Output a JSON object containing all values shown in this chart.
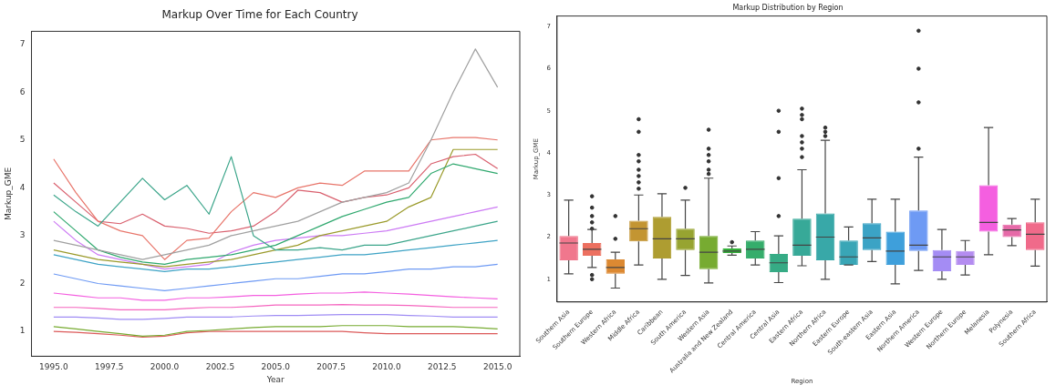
{
  "chart_data": [
    {
      "type": "line",
      "title": "Markup Over Time for Each Country",
      "xlabel": "Year",
      "ylabel": "Markup_GME",
      "xlim": [
        1994,
        2016
      ],
      "ylim": [
        0.48,
        7.27
      ],
      "xticks": [
        {
          "value": 1995,
          "label": "1995.0"
        },
        {
          "value": 1997.5,
          "label": "1997.5"
        },
        {
          "value": 2000,
          "label": "2000.0"
        },
        {
          "value": 2002.5,
          "label": "2002.5"
        },
        {
          "value": 2005,
          "label": "2005.0"
        },
        {
          "value": 2007.5,
          "label": "2007.5"
        },
        {
          "value": 2010,
          "label": "2010.0"
        },
        {
          "value": 2012.5,
          "label": "2012.5"
        },
        {
          "value": 2015,
          "label": "2015.0"
        }
      ],
      "yticks": [
        1,
        2,
        3,
        4,
        5,
        6,
        7
      ],
      "grid": false,
      "legend": false,
      "x": [
        1995,
        1996,
        1997,
        1998,
        1999,
        2000,
        2001,
        2002,
        2003,
        2004,
        2005,
        2006,
        2007,
        2008,
        2009,
        2010,
        2011,
        2012,
        2013,
        2014,
        2015
      ],
      "series": [
        {
          "color": "#a0a0a0",
          "values": [
            2.9,
            2.8,
            2.7,
            2.6,
            2.5,
            2.6,
            2.7,
            2.8,
            3.0,
            3.1,
            3.2,
            3.3,
            3.5,
            3.7,
            3.8,
            3.9,
            4.1,
            5.0,
            6.0,
            6.9,
            6.1
          ]
        },
        {
          "color": "#3ba58a",
          "values": [
            3.85,
            3.5,
            3.2,
            3.7,
            4.2,
            3.75,
            4.05,
            3.45,
            4.65,
            3.0,
            2.7,
            2.7,
            2.75,
            2.7,
            2.8,
            2.8,
            2.9,
            3.0,
            3.1,
            3.2,
            3.3
          ]
        },
        {
          "color": "#e8756a",
          "values": [
            4.6,
            3.9,
            3.3,
            3.1,
            3.0,
            2.5,
            2.9,
            2.95,
            3.5,
            3.9,
            3.8,
            4.0,
            4.1,
            4.05,
            4.35,
            4.35,
            4.35,
            5.0,
            5.05,
            5.05,
            5.0
          ]
        },
        {
          "color": "#d9606e",
          "values": [
            4.1,
            3.7,
            3.3,
            3.25,
            3.45,
            3.2,
            3.15,
            3.05,
            3.1,
            3.2,
            3.5,
            3.95,
            3.9,
            3.7,
            3.8,
            3.85,
            4.0,
            4.5,
            4.65,
            4.7,
            4.4
          ]
        },
        {
          "color": "#2fa86e",
          "values": [
            3.5,
            3.1,
            2.7,
            2.55,
            2.45,
            2.4,
            2.5,
            2.55,
            2.6,
            2.7,
            2.8,
            3.0,
            3.2,
            3.4,
            3.55,
            3.7,
            3.8,
            4.3,
            4.5,
            4.4,
            4.3
          ]
        },
        {
          "color": "#9a9a2a",
          "values": [
            2.7,
            2.6,
            2.5,
            2.45,
            2.4,
            2.35,
            2.4,
            2.45,
            2.5,
            2.6,
            2.7,
            2.8,
            3.0,
            3.1,
            3.2,
            3.3,
            3.6,
            3.8,
            4.8,
            4.8,
            4.8
          ]
        },
        {
          "color": "#cc7af4",
          "values": [
            3.3,
            2.9,
            2.6,
            2.5,
            2.4,
            2.3,
            2.35,
            2.4,
            2.65,
            2.8,
            2.9,
            2.95,
            3.0,
            3.0,
            3.05,
            3.1,
            3.2,
            3.3,
            3.4,
            3.5,
            3.6
          ]
        },
        {
          "color": "#3ea3c5",
          "values": [
            2.6,
            2.5,
            2.4,
            2.35,
            2.3,
            2.25,
            2.3,
            2.3,
            2.35,
            2.4,
            2.45,
            2.5,
            2.55,
            2.6,
            2.6,
            2.65,
            2.7,
            2.75,
            2.8,
            2.85,
            2.9
          ]
        },
        {
          "color": "#6e9af4",
          "values": [
            2.2,
            2.1,
            2.0,
            1.95,
            1.9,
            1.85,
            1.9,
            1.95,
            2.0,
            2.05,
            2.1,
            2.1,
            2.15,
            2.2,
            2.2,
            2.25,
            2.3,
            2.3,
            2.35,
            2.35,
            2.4
          ]
        },
        {
          "color": "#f45fe0",
          "values": [
            1.8,
            1.75,
            1.7,
            1.7,
            1.65,
            1.65,
            1.7,
            1.7,
            1.72,
            1.75,
            1.75,
            1.78,
            1.8,
            1.8,
            1.82,
            1.8,
            1.78,
            1.75,
            1.72,
            1.7,
            1.68
          ]
        },
        {
          "color": "#f565bf",
          "values": [
            1.5,
            1.5,
            1.48,
            1.45,
            1.45,
            1.45,
            1.48,
            1.5,
            1.5,
            1.52,
            1.55,
            1.55,
            1.55,
            1.56,
            1.55,
            1.55,
            1.54,
            1.52,
            1.5,
            1.5,
            1.5
          ]
        },
        {
          "color": "#9f8cf4",
          "values": [
            1.3,
            1.3,
            1.28,
            1.25,
            1.25,
            1.27,
            1.3,
            1.3,
            1.3,
            1.32,
            1.33,
            1.33,
            1.34,
            1.35,
            1.35,
            1.35,
            1.33,
            1.32,
            1.3,
            1.3,
            1.3
          ]
        },
        {
          "color": "#77ab31",
          "values": [
            1.1,
            1.05,
            1.0,
            0.95,
            0.9,
            0.92,
            1.0,
            1.02,
            1.05,
            1.08,
            1.1,
            1.1,
            1.1,
            1.12,
            1.12,
            1.12,
            1.1,
            1.1,
            1.1,
            1.08,
            1.05
          ]
        },
        {
          "color": "#dc5a5a",
          "values": [
            1.0,
            0.98,
            0.95,
            0.92,
            0.88,
            0.9,
            0.97,
            1.0,
            1.0,
            1.0,
            1.0,
            1.0,
            1.0,
            1.0,
            0.97,
            0.95,
            0.95,
            0.95,
            0.95,
            0.95,
            0.95
          ]
        }
      ]
    },
    {
      "type": "box",
      "title": "Markup Distribution by Region",
      "xlabel": "Region",
      "ylabel": "Markup_GME",
      "ylim": [
        0.46,
        7.25
      ],
      "yticks": [
        1,
        2,
        3,
        4,
        5,
        6,
        7
      ],
      "grid": false,
      "legend": false,
      "categories": [
        "Southern Asia",
        "Southern Europe",
        "Western Africa",
        "Middle Africa",
        "Caribbean",
        "South America",
        "Western Asia",
        "Australia and New Zealand",
        "Central America",
        "Central Asia",
        "Eastern Africa",
        "Northern Africa",
        "Eastern Europe",
        "South-eastern Asia",
        "Eastern Asia",
        "Northern America",
        "Western Europe",
        "Northern Europe",
        "Melanesia",
        "Polynesia",
        "Southern Africa"
      ],
      "colors": [
        "#f0778d",
        "#ec7060",
        "#dc8932",
        "#c39532",
        "#ae9d31",
        "#97a431",
        "#77ab31",
        "#33b039",
        "#35ad6b",
        "#36ab85",
        "#37a998",
        "#38a8a8",
        "#39a6b6",
        "#3ba3c5",
        "#3e9fdb",
        "#6e9af4",
        "#a48cf4",
        "#b48cf0",
        "#f45fe0",
        "#e66aa8",
        "#f06a8a"
      ],
      "boxes": [
        {
          "low": 1.13,
          "q1": 1.45,
          "median": 1.86,
          "q3": 2.03,
          "high": 2.88
        },
        {
          "low": 1.28,
          "q1": 1.56,
          "median": 1.71,
          "q3": 1.86,
          "high": 2.18,
          "outliers": [
            1.0,
            1.1,
            2.2,
            2.35,
            2.5,
            2.7,
            2.97
          ]
        },
        {
          "low": 0.79,
          "q1": 1.13,
          "median": 1.28,
          "q3": 1.47,
          "high": 1.64,
          "outliers": [
            1.96,
            2.5
          ]
        },
        {
          "low": 1.34,
          "q1": 1.9,
          "median": 2.2,
          "q3": 2.39,
          "high": 3.0,
          "outliers": [
            3.15,
            3.3,
            3.45,
            3.6,
            3.8,
            3.95,
            4.5,
            4.8
          ]
        },
        {
          "low": 1.0,
          "q1": 1.49,
          "median": 1.96,
          "q3": 2.48,
          "high": 3.03
        },
        {
          "low": 1.09,
          "q1": 1.69,
          "median": 1.96,
          "q3": 2.2,
          "high": 2.88,
          "outliers": [
            3.17
          ]
        },
        {
          "low": 0.91,
          "q1": 1.24,
          "median": 1.64,
          "q3": 2.03,
          "high": 3.4,
          "outliers": [
            3.5,
            3.6,
            3.8,
            3.95,
            4.1,
            4.55
          ]
        },
        {
          "low": 1.57,
          "q1": 1.62,
          "median": 1.67,
          "q3": 1.73,
          "high": 1.79,
          "outliers": [
            1.88
          ]
        },
        {
          "low": 1.34,
          "q1": 1.49,
          "median": 1.71,
          "q3": 1.92,
          "high": 2.13
        },
        {
          "low": 0.92,
          "q1": 1.17,
          "median": 1.39,
          "q3": 1.6,
          "high": 2.03,
          "outliers": [
            2.5,
            3.4,
            4.5,
            5.0
          ]
        },
        {
          "low": 1.32,
          "q1": 1.56,
          "median": 1.81,
          "q3": 2.44,
          "high": 3.6,
          "outliers": [
            3.9,
            4.1,
            4.25,
            4.4,
            4.8,
            4.9,
            5.05
          ]
        },
        {
          "low": 1.0,
          "q1": 1.45,
          "median": 2.0,
          "q3": 2.56,
          "high": 4.3,
          "outliers": [
            4.4,
            4.5,
            4.6
          ]
        },
        {
          "low": 1.34,
          "q1": 1.34,
          "median": 1.53,
          "q3": 1.92,
          "high": 2.24
        },
        {
          "low": 1.42,
          "q1": 1.69,
          "median": 1.98,
          "q3": 2.33,
          "high": 2.9
        },
        {
          "low": 0.89,
          "q1": 1.34,
          "median": 1.67,
          "q3": 2.13,
          "high": 2.9
        },
        {
          "low": 1.21,
          "q1": 1.67,
          "median": 1.81,
          "q3": 2.63,
          "high": 3.9,
          "outliers": [
            4.1,
            5.2,
            6.0,
            6.9
          ]
        },
        {
          "low": 1.0,
          "q1": 1.19,
          "median": 1.53,
          "q3": 1.69,
          "high": 2.18
        },
        {
          "low": 1.1,
          "q1": 1.34,
          "median": 1.53,
          "q3": 1.67,
          "high": 1.92
        },
        {
          "low": 1.58,
          "q1": 2.13,
          "median": 2.35,
          "q3": 3.23,
          "high": 4.6
        },
        {
          "low": 1.8,
          "q1": 2.0,
          "median": 2.17,
          "q3": 2.3,
          "high": 2.44
        },
        {
          "low": 1.31,
          "q1": 1.69,
          "median": 2.07,
          "q3": 2.35,
          "high": 2.9
        }
      ]
    }
  ]
}
